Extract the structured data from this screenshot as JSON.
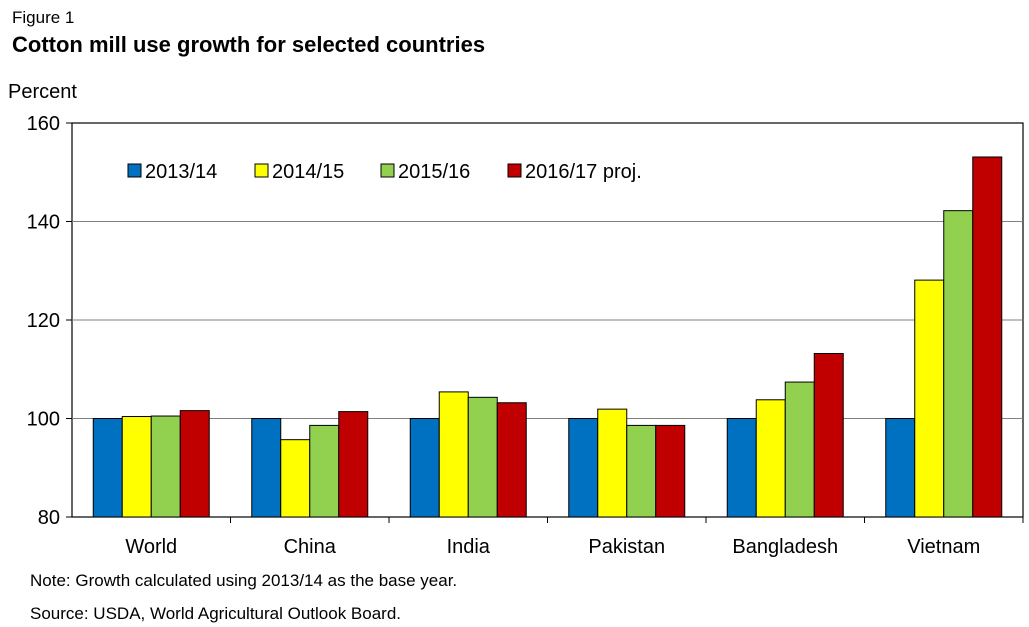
{
  "figure_label": "Figure 1",
  "note": "Note: Growth calculated using 2013/14 as the base year.",
  "source": "Source:  USDA, World Agricultural Outlook Board.",
  "chart_data": {
    "type": "bar",
    "title": "Cotton mill use growth for selected countries",
    "ylabel": "Percent",
    "xlabel": "",
    "ylim": [
      80,
      160
    ],
    "yticks": [
      80,
      100,
      120,
      140,
      160
    ],
    "grid": true,
    "legend_position": "top-left inside",
    "categories": [
      "World",
      "China",
      "India",
      "Pakistan",
      "Bangladesh",
      "Vietnam"
    ],
    "series": [
      {
        "name": "2013/14",
        "color": "#0070C0",
        "values": [
          100,
          100,
          100,
          100,
          100,
          100
        ]
      },
      {
        "name": "2014/15",
        "color": "#FFFF00",
        "values": [
          100.4,
          95.7,
          105.4,
          101.9,
          103.8,
          128.1
        ]
      },
      {
        "name": "2015/16",
        "color": "#92D050",
        "values": [
          100.5,
          98.6,
          104.3,
          98.6,
          107.4,
          142.2
        ]
      },
      {
        "name": "2016/17 proj.",
        "color": "#C00000",
        "values": [
          101.6,
          101.4,
          103.2,
          98.6,
          113.2,
          153.1
        ]
      }
    ]
  }
}
